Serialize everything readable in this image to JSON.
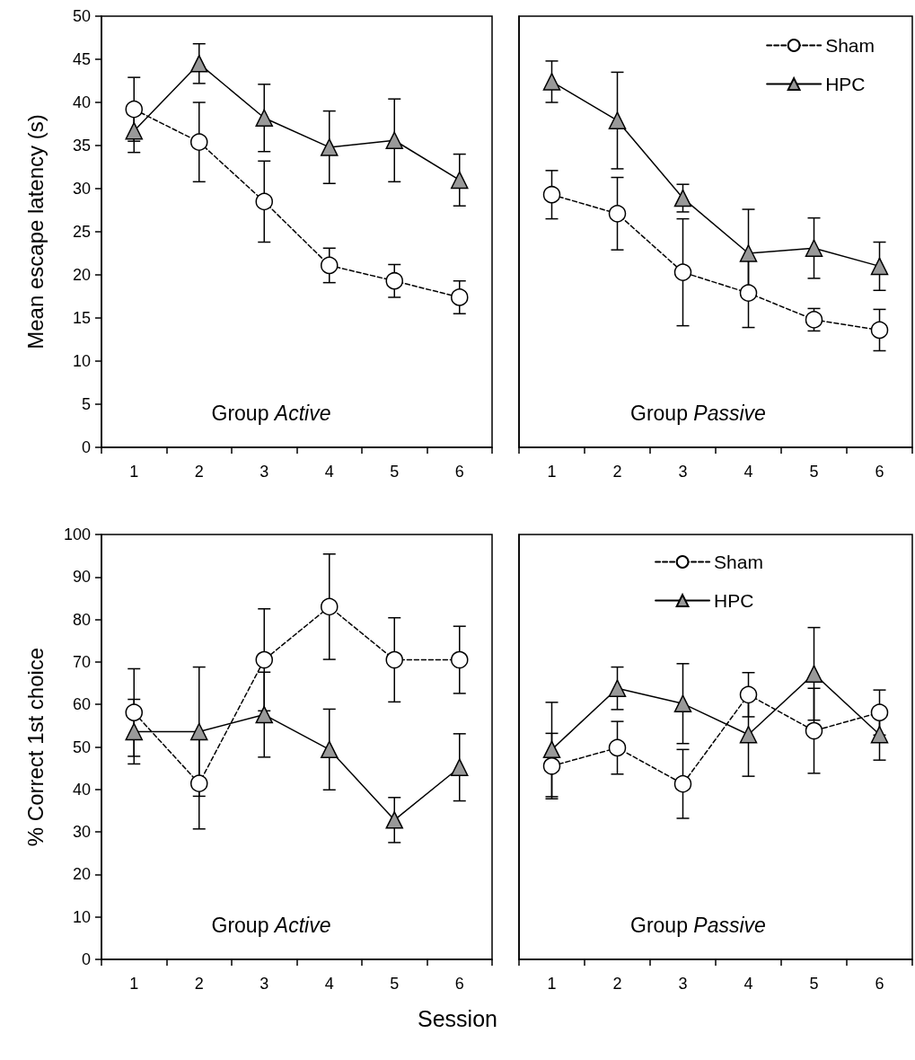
{
  "chart_data": [
    {
      "type": "line",
      "ylabel": "Mean escape latency (s)",
      "annotations": [
        "Group Active"
      ],
      "categories": [
        "1",
        "2",
        "3",
        "4",
        "5",
        "6"
      ],
      "ylim": [
        0,
        50
      ],
      "yticks": [
        0,
        5,
        10,
        15,
        20,
        25,
        30,
        35,
        40,
        45,
        50
      ],
      "legend": false,
      "series": [
        {
          "color": "#ffffff",
          "marker": "circle",
          "line_style": "dashed",
          "values": [
            39.2,
            35.4,
            28.5,
            21.1,
            19.3,
            17.4
          ],
          "errors": [
            3.7,
            4.6,
            4.7,
            2,
            1.9,
            1.9
          ]
        },
        {
          "color": "#999999",
          "marker": "triangle",
          "line_style": "solid",
          "values": [
            36.7,
            44.5,
            38.2,
            34.8,
            35.6,
            31.0
          ],
          "errors": [
            2.5,
            2.3,
            3.9,
            4.2,
            4.8,
            3.0
          ]
        }
      ]
    },
    {
      "type": "line",
      "annotations": [
        "Group Passive"
      ],
      "categories": [
        "1",
        "2",
        "3",
        "4",
        "5",
        "6"
      ],
      "ylim": [
        0,
        50
      ],
      "tick_labels": "x",
      "legend": "top right",
      "series": [
        {
          "name": "Sham",
          "color": "#ffffff",
          "marker": "circle",
          "line_style": "dashed",
          "values": [
            29.3,
            27.1,
            20.3,
            17.9,
            14.8,
            13.6
          ],
          "errors": [
            2.8,
            4.2,
            6.2,
            4.0,
            1.3,
            2.4
          ]
        },
        {
          "name": "HPC",
          "color": "#999999",
          "marker": "triangle",
          "line_style": "solid",
          "values": [
            42.4,
            37.9,
            28.9,
            22.5,
            23.1,
            21.0
          ],
          "errors": [
            2.4,
            5.6,
            1.6,
            5.1,
            3.5,
            2.8
          ]
        }
      ]
    },
    {
      "type": "line",
      "ylabel": "% Correct 1st choice",
      "xlabel": "Session",
      "annotations": [
        "Group Active"
      ],
      "categories": [
        "1",
        "2",
        "3",
        "4",
        "5",
        "6"
      ],
      "ylim": [
        0,
        100
      ],
      "yticks": [
        0,
        10,
        20,
        30,
        40,
        50,
        60,
        70,
        80,
        90,
        100
      ],
      "legend": false,
      "series": [
        {
          "color": "#ffffff",
          "marker": "circle",
          "line_style": "dashed",
          "values": [
            58.1,
            41.4,
            70.5,
            83.0,
            70.5,
            70.5
          ],
          "errors": [
            10.3,
            10.7,
            12,
            12.4,
            9.9,
            7.9
          ]
        },
        {
          "color": "#999999",
          "marker": "triangle",
          "line_style": "solid",
          "values": [
            53.6,
            53.6,
            57.6,
            49.4,
            32.8,
            45.2
          ],
          "errors": [
            7.6,
            15.2,
            10,
            9.5,
            5.3,
            7.9
          ]
        }
      ]
    },
    {
      "type": "line",
      "annotations": [
        "Group Passive"
      ],
      "categories": [
        "1",
        "2",
        "3",
        "4",
        "5",
        "6"
      ],
      "ylim": [
        0,
        100
      ],
      "tick_labels": "x",
      "legend": "top",
      "series": [
        {
          "name": "Sham",
          "color": "#ffffff",
          "marker": "circle",
          "line_style": "dashed",
          "values": [
            45.5,
            49.8,
            41.3,
            62.3,
            53.8,
            58.1
          ],
          "errors": [
            7.7,
            6.2,
            8.1,
            5.2,
            10,
            5.3
          ]
        },
        {
          "name": "HPC",
          "color": "#999999",
          "marker": "triangle",
          "line_style": "solid",
          "values": [
            49.4,
            63.8,
            60.2,
            52.9,
            67.2,
            52.9
          ],
          "errors": [
            11.1,
            5,
            9.4,
            9.8,
            10.9,
            6
          ]
        }
      ]
    }
  ]
}
